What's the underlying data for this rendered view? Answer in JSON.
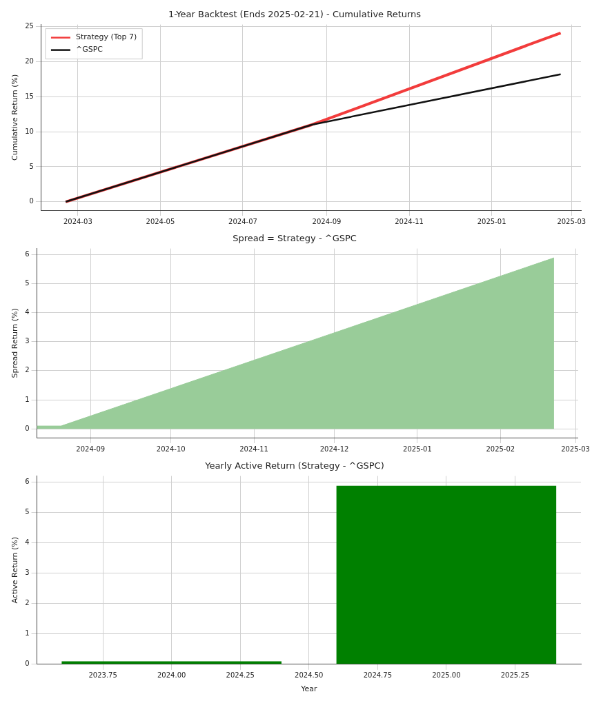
{
  "chart_data": [
    {
      "type": "line",
      "title": "1-Year Backtest (Ends 2025-02-21) - Cumulative Returns",
      "ylabel": "Cumulative Return (%)",
      "x": [
        "2024-02-21",
        "2024-08-21",
        "2025-02-21"
      ],
      "series": [
        {
          "name": "Strategy (Top 7)",
          "color": "#f23c3c",
          "values": [
            0,
            11,
            24.1
          ]
        },
        {
          "name": "^GSPC",
          "color": "#111111",
          "values": [
            0,
            11,
            18.2
          ]
        }
      ],
      "xlim": [
        "2024-02-03",
        "2025-03-08"
      ],
      "xticks": [
        "2024-03",
        "2024-05",
        "2024-07",
        "2024-09",
        "2024-11",
        "2025-01",
        "2025-03"
      ],
      "ylim": [
        -1.2,
        25.3
      ],
      "yticks": [
        0,
        5,
        10,
        15,
        20,
        25
      ],
      "grid": true,
      "legend": "top left"
    },
    {
      "type": "area",
      "title": "Spread = Strategy - ^GSPC",
      "ylabel": "Spread Return (%)",
      "x": [
        "2024-08-12",
        "2024-08-21",
        "2025-02-21"
      ],
      "series": [
        {
          "color": "#99cc99",
          "values": [
            0.1,
            0.1,
            5.88
          ]
        }
      ],
      "xlim": [
        "2024-08-12",
        "2025-03-02"
      ],
      "xticks": [
        "2024-09",
        "2024-10",
        "2024-11",
        "2024-12",
        "2025-01",
        "2025-02",
        "2025-03"
      ],
      "ylim": [
        -0.3,
        6.2
      ],
      "yticks": [
        0,
        1,
        2,
        3,
        4,
        5,
        6
      ],
      "grid": true
    },
    {
      "type": "bar",
      "title": "Yearly Active Return (Strategy - ^GSPC)",
      "xlabel": "Year",
      "ylabel": "Active Return (%)",
      "x": [
        2024,
        2025
      ],
      "series": [
        {
          "color": "#008000",
          "values": [
            0.1,
            5.88
          ]
        }
      ],
      "xlim": [
        2023.51,
        2025.49
      ],
      "xticks": [
        {
          "value": 2023.75,
          "label": "2023.75"
        },
        {
          "value": 2024,
          "label": "2024.00"
        },
        {
          "value": 2024.25,
          "label": "2024.25"
        },
        {
          "value": 2024.5,
          "label": "2024.50"
        },
        {
          "value": 2024.75,
          "label": "2024.75"
        },
        {
          "value": 2025,
          "label": "2025.00"
        },
        {
          "value": 2025.25,
          "label": "2025.25"
        }
      ],
      "ylim": [
        0,
        6.2
      ],
      "yticks": [
        0,
        1,
        2,
        3,
        4,
        5,
        6
      ],
      "grid": true
    }
  ]
}
